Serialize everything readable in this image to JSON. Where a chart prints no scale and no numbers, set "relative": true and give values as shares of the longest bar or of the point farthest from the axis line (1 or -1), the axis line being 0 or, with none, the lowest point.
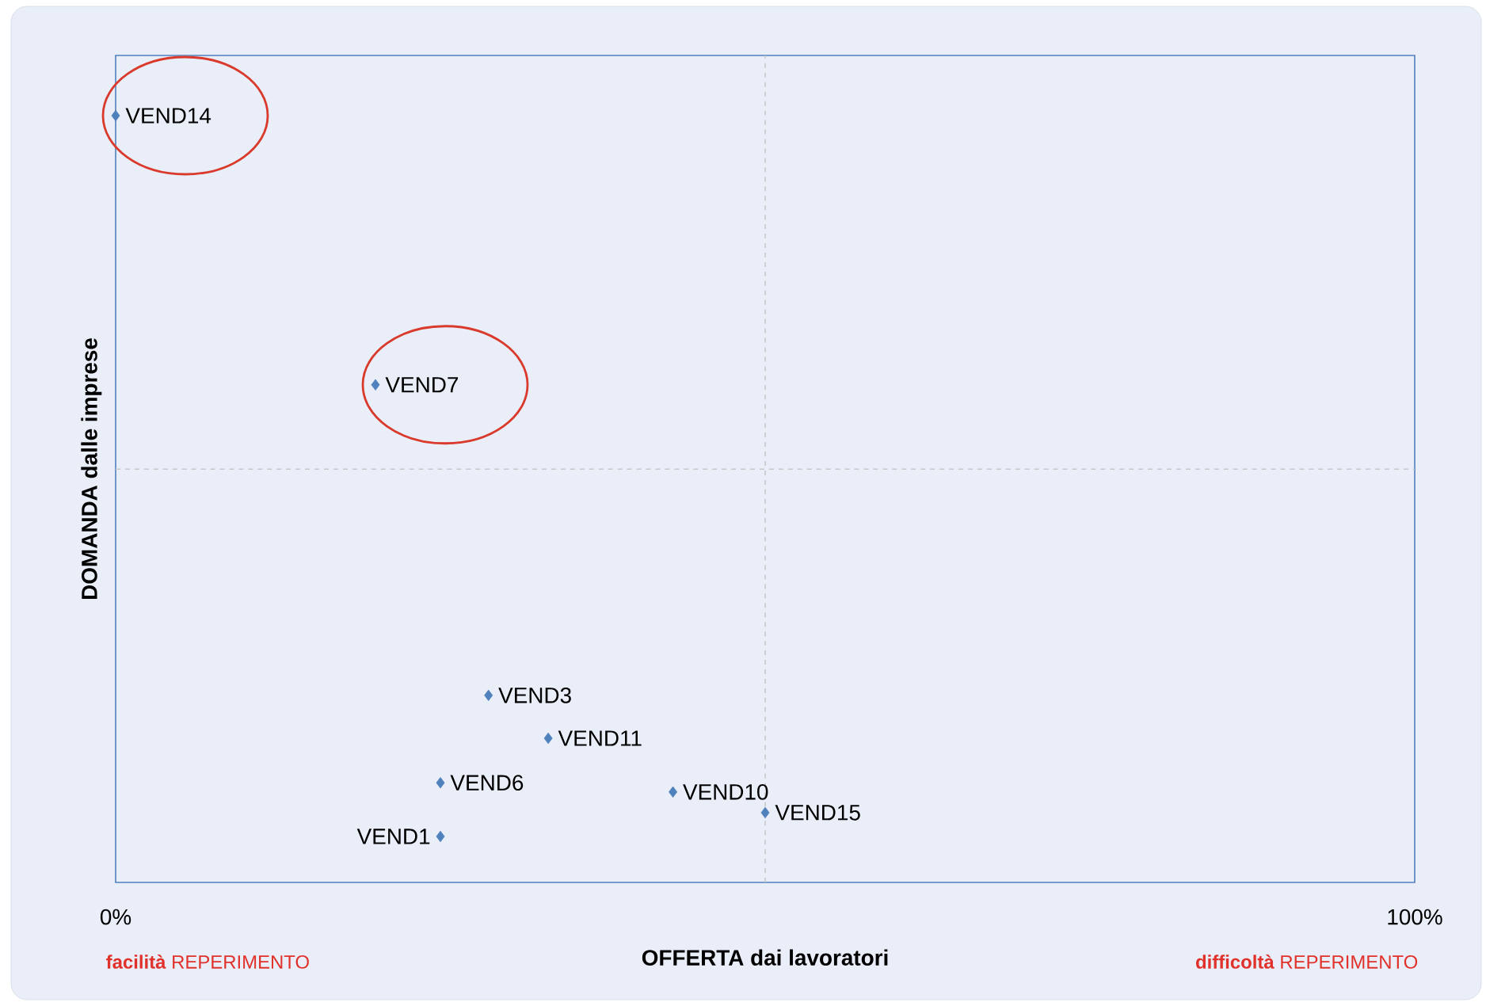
{
  "chart_data": {
    "type": "scatter",
    "relative": true,
    "xlabel": "OFFERTA dai lavoratori",
    "ylabel": "DOMANDA dalle imprese",
    "xlim": [
      0,
      100
    ],
    "xticks": [
      {
        "value": 0,
        "label": "0%"
      },
      {
        "value": 100,
        "label": "100%"
      }
    ],
    "tick_labels": "x",
    "marker": "diamond",
    "series": [
      {
        "color": "#4f81bd",
        "x": [
          0,
          20,
          28.7,
          33.3,
          25,
          42.9,
          50,
          25
        ],
        "values": [
          1,
          0.649,
          0.244,
          0.188,
          0.13,
          0.118,
          0.091,
          0.06
        ]
      }
    ],
    "ref_lines": [
      {
        "axis": "x",
        "value": 50,
        "color": "#c8c8c8",
        "line_style": "dashed"
      },
      {
        "axis": "y",
        "value": 0.539,
        "color": "#c8c8c8",
        "line_style": "dashed"
      }
    ],
    "annotations": [
      {
        "text": "VEND14",
        "x": 0,
        "y": 1
      },
      {
        "text": "VEND7",
        "x": 20,
        "y": 0.649
      },
      {
        "text": "VEND3",
        "x": 28.7,
        "y": 0.244
      },
      {
        "text": "VEND11",
        "x": 33.3,
        "y": 0.188
      },
      {
        "text": "VEND6",
        "x": 25,
        "y": 0.13
      },
      {
        "text": "VEND10",
        "x": 42.9,
        "y": 0.118
      },
      {
        "text": "VEND15",
        "x": 50,
        "y": 0.091
      },
      {
        "text": "VEND1",
        "x": 25,
        "y": 0.06
      },
      "**facilità** REPERIMENTO",
      "**difficoltà** REPERIMENTO"
    ]
  }
}
